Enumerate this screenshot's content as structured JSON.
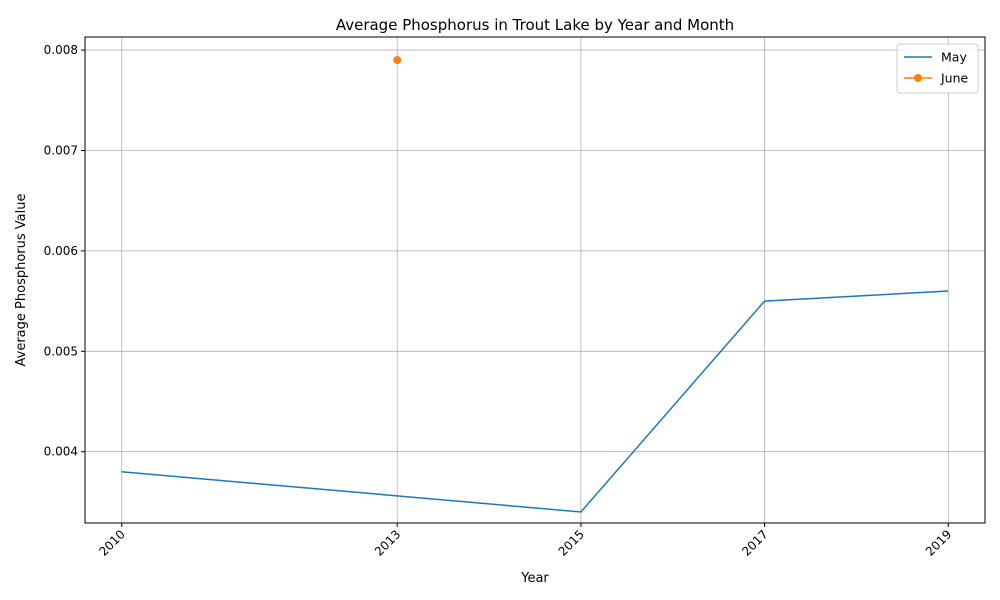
{
  "chart_data": {
    "type": "line",
    "title": "Average Phosphorus in Trout Lake by Year and Month",
    "xlabel": "Year",
    "ylabel": "Average Phosphorus Value",
    "xticks": [
      "2010",
      "2013",
      "2015",
      "2017",
      "2019"
    ],
    "yticks": [
      "0.004",
      "0.005",
      "0.006",
      "0.007",
      "0.008"
    ],
    "xlim": [
      2009.6,
      2019.4
    ],
    "ylim": [
      0.00329,
      0.00813
    ],
    "grid": true,
    "legend": "top-right",
    "series": [
      {
        "name": "May",
        "color": "#1f77b4",
        "marker": false,
        "points": [
          {
            "x": 2010,
            "y": 0.0038
          },
          {
            "x": 2015,
            "y": 0.0034
          },
          {
            "x": 2017,
            "y": 0.0055
          },
          {
            "x": 2019,
            "y": 0.0056
          }
        ]
      },
      {
        "name": "June",
        "color": "#ff7f0e",
        "marker": true,
        "points": [
          {
            "x": 2013,
            "y": 0.0079
          }
        ]
      }
    ]
  }
}
